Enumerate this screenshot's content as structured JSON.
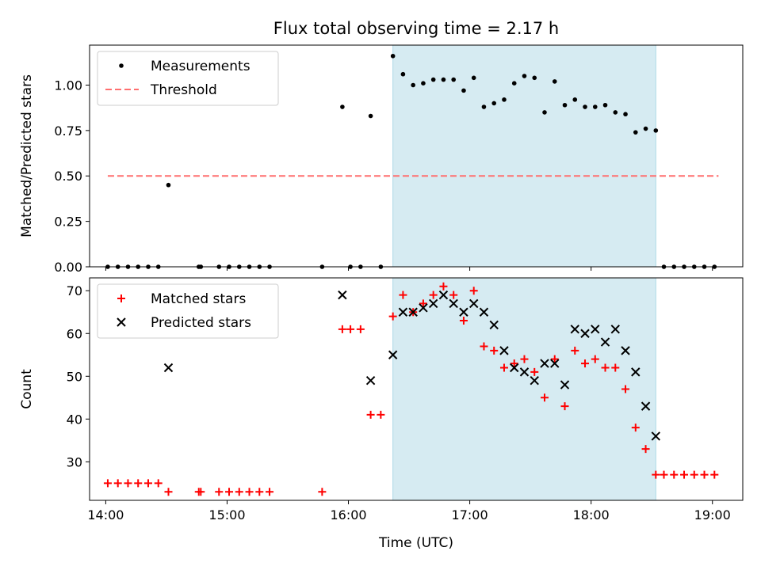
{
  "title": "Flux total observing time = 2.17 h",
  "colors": {
    "measurements": "#000000",
    "threshold": "#ff6f6f",
    "matched": "#ff0000",
    "predicted": "#000000",
    "shade": "#add8e6"
  },
  "chart_data": [
    {
      "type": "scatter",
      "title": "Flux total observing time = 2.17 h",
      "ylabel": "Matched/Predicted stars",
      "xlabel": "",
      "xlim": [
        "13:52",
        "19:15"
      ],
      "ylim": [
        0,
        1.22
      ],
      "yticks": [
        "0.00",
        "0.25",
        "0.50",
        "0.75",
        "1.00"
      ],
      "shaded_span": [
        "16:22",
        "18:32"
      ],
      "legend_position": "top-left",
      "series": [
        {
          "name": "Measurements",
          "marker": "dot",
          "points": [
            [
              "14:01",
              0
            ],
            [
              "14:06",
              0
            ],
            [
              "14:11",
              0
            ],
            [
              "14:16",
              0
            ],
            [
              "14:21",
              0
            ],
            [
              "14:26",
              0
            ],
            [
              "14:31",
              0.45
            ],
            [
              "14:46",
              0
            ],
            [
              "14:47",
              0
            ],
            [
              "14:56",
              0
            ],
            [
              "15:01",
              0
            ],
            [
              "15:06",
              0
            ],
            [
              "15:11",
              0
            ],
            [
              "15:16",
              0
            ],
            [
              "15:21",
              0
            ],
            [
              "15:47",
              0
            ],
            [
              "15:57",
              0.88
            ],
            [
              "16:01",
              0
            ],
            [
              "16:06",
              0
            ],
            [
              "16:11",
              0.83
            ],
            [
              "16:16",
              0
            ],
            [
              "16:22",
              1.16
            ],
            [
              "16:27",
              1.06
            ],
            [
              "16:32",
              1.0
            ],
            [
              "16:37",
              1.01
            ],
            [
              "16:42",
              1.03
            ],
            [
              "16:47",
              1.03
            ],
            [
              "16:52",
              1.03
            ],
            [
              "16:57",
              0.97
            ],
            [
              "17:02",
              1.04
            ],
            [
              "17:07",
              0.88
            ],
            [
              "17:12",
              0.9
            ],
            [
              "17:17",
              0.92
            ],
            [
              "17:22",
              1.01
            ],
            [
              "17:27",
              1.05
            ],
            [
              "17:32",
              1.04
            ],
            [
              "17:37",
              0.85
            ],
            [
              "17:42",
              1.02
            ],
            [
              "17:47",
              0.89
            ],
            [
              "17:52",
              0.92
            ],
            [
              "17:57",
              0.88
            ],
            [
              "18:02",
              0.88
            ],
            [
              "18:07",
              0.89
            ],
            [
              "18:12",
              0.85
            ],
            [
              "18:17",
              0.84
            ],
            [
              "18:22",
              0.74
            ],
            [
              "18:27",
              0.76
            ],
            [
              "18:32",
              0.75
            ],
            [
              "18:36",
              0
            ],
            [
              "18:41",
              0
            ],
            [
              "18:46",
              0
            ],
            [
              "18:51",
              0
            ],
            [
              "18:56",
              0
            ],
            [
              "19:01",
              0
            ]
          ]
        },
        {
          "name": "Threshold",
          "style": "dashed",
          "points": [
            [
              "14:01",
              0.5
            ],
            [
              "19:03",
              0.5
            ]
          ]
        }
      ]
    },
    {
      "type": "scatter",
      "title": "",
      "xlabel": "Time (UTC)",
      "ylabel": "Count",
      "xlim": [
        "13:52",
        "19:15"
      ],
      "ylim": [
        21,
        73
      ],
      "xticks": [
        "14:00",
        "15:00",
        "16:00",
        "17:00",
        "18:00",
        "19:00"
      ],
      "yticks": [
        "30",
        "40",
        "50",
        "60",
        "70"
      ],
      "shaded_span": [
        "16:22",
        "18:32"
      ],
      "legend_position": "top-left",
      "series": [
        {
          "name": "Matched stars",
          "marker": "plus",
          "points": [
            [
              "14:01",
              25
            ],
            [
              "14:06",
              25
            ],
            [
              "14:11",
              25
            ],
            [
              "14:16",
              25
            ],
            [
              "14:21",
              25
            ],
            [
              "14:26",
              25
            ],
            [
              "14:31",
              23
            ],
            [
              "14:46",
              23
            ],
            [
              "14:47",
              23
            ],
            [
              "14:56",
              23
            ],
            [
              "15:01",
              23
            ],
            [
              "15:06",
              23
            ],
            [
              "15:11",
              23
            ],
            [
              "15:16",
              23
            ],
            [
              "15:21",
              23
            ],
            [
              "15:47",
              23
            ],
            [
              "15:57",
              61
            ],
            [
              "16:01",
              61
            ],
            [
              "16:06",
              61
            ],
            [
              "16:11",
              41
            ],
            [
              "16:16",
              41
            ],
            [
              "16:22",
              64
            ],
            [
              "16:27",
              69
            ],
            [
              "16:32",
              65
            ],
            [
              "16:37",
              67
            ],
            [
              "16:42",
              69
            ],
            [
              "16:47",
              71
            ],
            [
              "16:52",
              69
            ],
            [
              "16:57",
              63
            ],
            [
              "17:02",
              70
            ],
            [
              "17:07",
              57
            ],
            [
              "17:12",
              56
            ],
            [
              "17:17",
              52
            ],
            [
              "17:22",
              53
            ],
            [
              "17:27",
              54
            ],
            [
              "17:32",
              51
            ],
            [
              "17:37",
              45
            ],
            [
              "17:42",
              54
            ],
            [
              "17:47",
              43
            ],
            [
              "17:52",
              56
            ],
            [
              "17:57",
              53
            ],
            [
              "18:02",
              54
            ],
            [
              "18:07",
              52
            ],
            [
              "18:12",
              52
            ],
            [
              "18:17",
              47
            ],
            [
              "18:22",
              38
            ],
            [
              "18:27",
              33
            ],
            [
              "18:32",
              27
            ],
            [
              "18:36",
              27
            ],
            [
              "18:41",
              27
            ],
            [
              "18:46",
              27
            ],
            [
              "18:51",
              27
            ],
            [
              "18:56",
              27
            ],
            [
              "19:01",
              27
            ]
          ]
        },
        {
          "name": "Predicted stars",
          "marker": "x",
          "points": [
            [
              "14:31",
              52
            ],
            [
              "15:57",
              69
            ],
            [
              "16:11",
              49
            ],
            [
              "16:22",
              55
            ],
            [
              "16:27",
              65
            ],
            [
              "16:32",
              65
            ],
            [
              "16:37",
              66
            ],
            [
              "16:42",
              67
            ],
            [
              "16:47",
              69
            ],
            [
              "16:52",
              67
            ],
            [
              "16:57",
              65
            ],
            [
              "17:02",
              67
            ],
            [
              "17:07",
              65
            ],
            [
              "17:12",
              62
            ],
            [
              "17:17",
              56
            ],
            [
              "17:22",
              52
            ],
            [
              "17:27",
              51
            ],
            [
              "17:32",
              49
            ],
            [
              "17:37",
              53
            ],
            [
              "17:42",
              53
            ],
            [
              "17:47",
              48
            ],
            [
              "17:52",
              61
            ],
            [
              "17:57",
              60
            ],
            [
              "18:02",
              61
            ],
            [
              "18:07",
              58
            ],
            [
              "18:12",
              61
            ],
            [
              "18:17",
              56
            ],
            [
              "18:22",
              51
            ],
            [
              "18:27",
              43
            ],
            [
              "18:32",
              36
            ]
          ]
        }
      ]
    }
  ]
}
